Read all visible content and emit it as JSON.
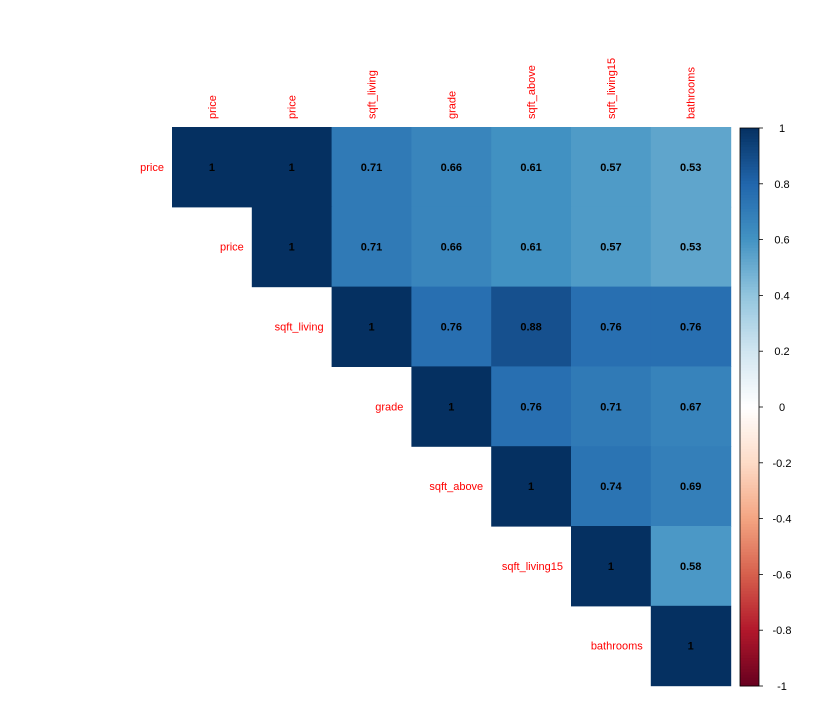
{
  "chart_data": {
    "type": "heatmap",
    "style": "upper-triangle correlation matrix",
    "variables": [
      "price",
      "price",
      "sqft_living",
      "grade",
      "sqft_above",
      "sqft_living15",
      "bathrooms"
    ],
    "matrix": [
      [
        1,
        1,
        0.71,
        0.66,
        0.61,
        0.57,
        0.53
      ],
      [
        null,
        1,
        0.71,
        0.66,
        0.61,
        0.57,
        0.53
      ],
      [
        null,
        null,
        1,
        0.76,
        0.88,
        0.76,
        0.76
      ],
      [
        null,
        null,
        null,
        1,
        0.76,
        0.71,
        0.67
      ],
      [
        null,
        null,
        null,
        null,
        1,
        0.74,
        0.69
      ],
      [
        null,
        null,
        null,
        null,
        null,
        1,
        0.58
      ],
      [
        null,
        null,
        null,
        null,
        null,
        null,
        1
      ]
    ],
    "colorbar": {
      "range": [
        -1,
        1
      ],
      "ticks": [
        "1",
        "0.8",
        "0.6",
        "0.4",
        "0.2",
        "0",
        "-0.2",
        "-0.4",
        "-0.6",
        "-0.8",
        "-1"
      ]
    },
    "colors": {
      "label": "#ff0000",
      "value_text": "#000000",
      "scale": [
        "#67001f",
        "#b2182b",
        "#d6604d",
        "#f4a582",
        "#fddbc7",
        "#ffffff",
        "#d1e5f0",
        "#92c5de",
        "#4393c3",
        "#2166ac",
        "#053061"
      ]
    }
  }
}
